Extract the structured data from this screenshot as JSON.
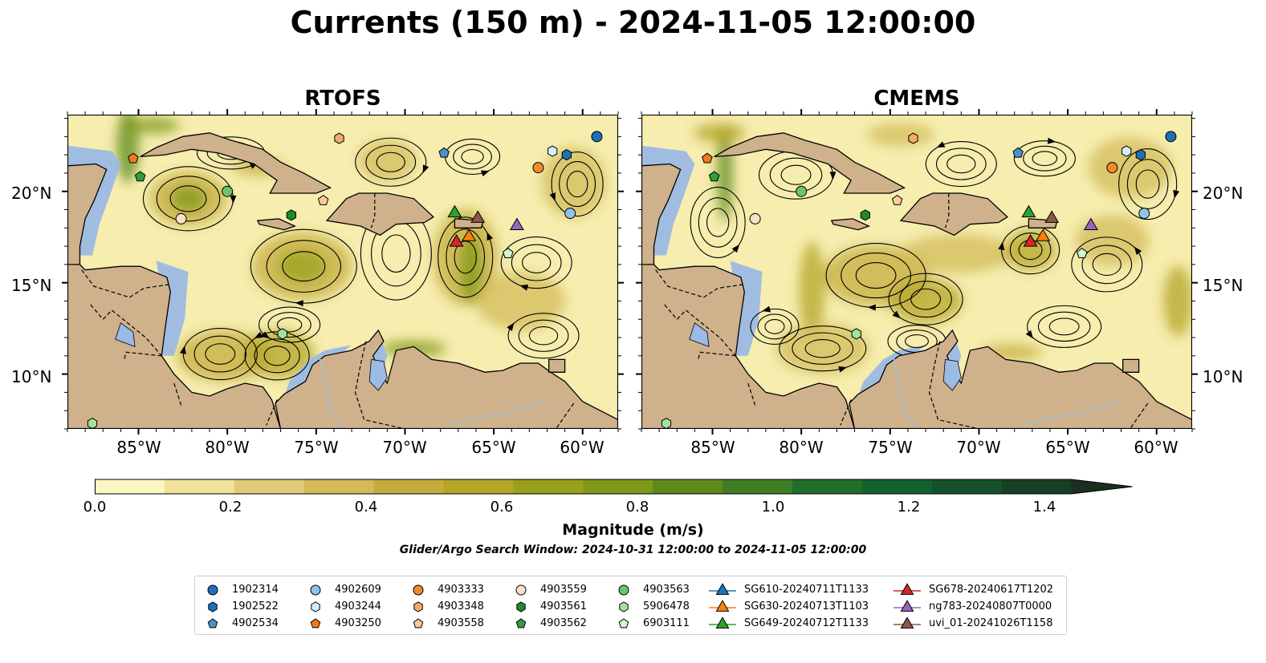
{
  "title": "Currents (150 m) - 2024-11-05 12:00:00",
  "panels": [
    {
      "title": "RTOFS"
    },
    {
      "title": "CMEMS"
    }
  ],
  "lat_labels": [
    "20°N",
    "15°N",
    "10°N"
  ],
  "lon_labels": [
    "85°W",
    "80°W",
    "75°W",
    "70°W",
    "65°W",
    "60°W"
  ],
  "map_extent": {
    "lon": [
      -89,
      -58
    ],
    "lat": [
      7,
      24.2
    ]
  },
  "colorbar": {
    "label": "Magnitude (m/s)",
    "ticks": [
      "0.0",
      "0.2",
      "0.4",
      "0.6",
      "0.8",
      "1.0",
      "1.2",
      "1.4"
    ],
    "levels": [
      0.0,
      0.1,
      0.2,
      0.3,
      0.4,
      0.5,
      0.6,
      0.7,
      0.8,
      0.9,
      1.0,
      1.1,
      1.2,
      1.3,
      1.4,
      1.5
    ],
    "colors": [
      "#fcf6c0",
      "#f0e29a",
      "#e0cc78",
      "#d2bb58",
      "#c4ac3c",
      "#b4a428",
      "#98a01c",
      "#7e9818",
      "#5e8a1c",
      "#3f7e22",
      "#1f6e2a",
      "#136030",
      "#14512c",
      "#183e24",
      "#1c2e1e"
    ],
    "extend": "max"
  },
  "search_window": "Glider/Argo Search Window: 2024-10-31 12:00:00 to 2024-11-05 12:00:00",
  "colors": {
    "ocean": "#9bbae4",
    "land": "#cfb18b",
    "river": "#a6bfd6"
  },
  "legend": [
    {
      "label": "1902314",
      "marker": "circle",
      "color": "#1f6fb4"
    },
    {
      "label": "1902522",
      "marker": "hexagon",
      "color": "#1f6fb4"
    },
    {
      "label": "4902534",
      "marker": "pentagon",
      "color": "#4d92c8"
    },
    {
      "label": "4902609",
      "marker": "circle",
      "color": "#8fc3ea"
    },
    {
      "label": "4903244",
      "marker": "hexagon",
      "color": "#d6ecfb"
    },
    {
      "label": "4903250",
      "marker": "pentagon",
      "color": "#f07a1a"
    },
    {
      "label": "4903333",
      "marker": "circle",
      "color": "#f08a30"
    },
    {
      "label": "4903348",
      "marker": "hexagon",
      "color": "#f5aa65"
    },
    {
      "label": "4903558",
      "marker": "pentagon",
      "color": "#fbc99a"
    },
    {
      "label": "4903559",
      "marker": "circle",
      "color": "#fde0c8"
    },
    {
      "label": "4903561",
      "marker": "hexagon",
      "color": "#1f8a2a"
    },
    {
      "label": "4903562",
      "marker": "pentagon",
      "color": "#2f9e3e"
    },
    {
      "label": "4903563",
      "marker": "circle",
      "color": "#6cc46a"
    },
    {
      "label": "5906478",
      "marker": "hexagon",
      "color": "#a2e39b"
    },
    {
      "label": "6903111",
      "marker": "pentagon",
      "color": "#d2f5cc"
    },
    {
      "label": "SG610-20240711T1133",
      "marker": "triangle",
      "color": "#1f77b4"
    },
    {
      "label": "SG630-20240713T1103",
      "marker": "triangle",
      "color": "#ff7f0e"
    },
    {
      "label": "SG649-20240712T1133",
      "marker": "triangle",
      "color": "#2ca02c"
    },
    {
      "label": "SG678-20240617T1202",
      "marker": "triangle",
      "color": "#d62728"
    },
    {
      "label": "ng783-20240807T0000",
      "marker": "triangle",
      "color": "#9467bd"
    },
    {
      "label": "uvi_01-20241026T1158",
      "marker": "triangle",
      "color": "#8c564b"
    }
  ],
  "markers": [
    {
      "id": "1902314",
      "lon": -59.2,
      "lat": 23.0
    },
    {
      "id": "1902522",
      "lon": -60.9,
      "lat": 22.0
    },
    {
      "id": "4902534",
      "lon": -67.8,
      "lat": 22.1
    },
    {
      "id": "4902609",
      "lon": -60.7,
      "lat": 18.8
    },
    {
      "id": "4903244",
      "lon": -61.7,
      "lat": 22.2
    },
    {
      "id": "4903250",
      "lon": -85.3,
      "lat": 21.8
    },
    {
      "id": "4903333",
      "lon": -62.5,
      "lat": 21.3
    },
    {
      "id": "4903348",
      "lon": -73.7,
      "lat": 22.9
    },
    {
      "id": "4903558",
      "lon": -74.6,
      "lat": 19.5
    },
    {
      "id": "4903559",
      "lon": -82.6,
      "lat": 18.5
    },
    {
      "id": "4903561",
      "lon": -76.4,
      "lat": 18.7
    },
    {
      "id": "4903562",
      "lon": -84.9,
      "lat": 20.8
    },
    {
      "id": "4903563",
      "lon": -80.0,
      "lat": 20.0
    },
    {
      "id": "5906478",
      "lon": -76.9,
      "lat": 12.2
    },
    {
      "id": "6903111",
      "lon": -64.2,
      "lat": 16.6
    },
    {
      "id": "5906478b",
      "lon": -87.6,
      "lat": 7.3
    }
  ],
  "gliders": [
    {
      "id": "SG649-20240712T1133",
      "lon": -67.2,
      "lat": 18.9
    },
    {
      "id": "uvi_01-20241026T1158",
      "lon": -65.9,
      "lat": 18.6
    },
    {
      "id": "SG678-20240617T1202",
      "lon": -67.1,
      "lat": 17.3
    },
    {
      "id": "SG630-20240713T1103",
      "lon": -66.4,
      "lat": 17.6
    },
    {
      "id": "ng783-20240807T0000",
      "lon": -63.7,
      "lat": 18.2
    }
  ]
}
